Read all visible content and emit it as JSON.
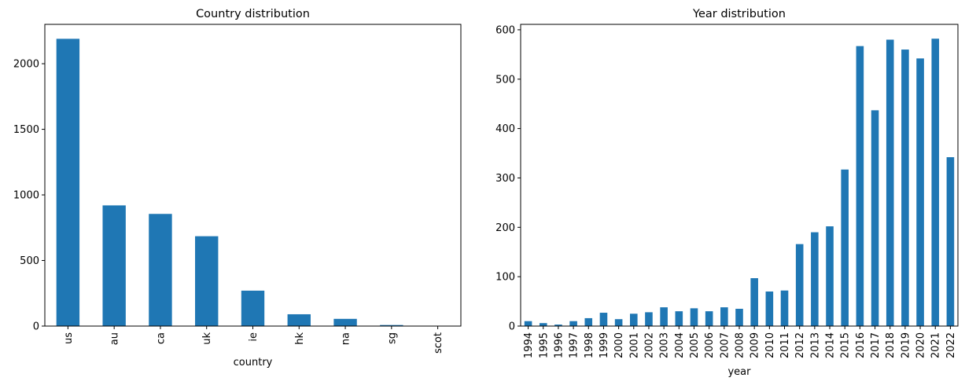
{
  "chart_data": [
    {
      "type": "bar",
      "title": "Country distribution",
      "xlabel": "country",
      "ylabel": "",
      "categories": [
        "us",
        "au",
        "ca",
        "uk",
        "ie",
        "hk",
        "na",
        "sg",
        "scot"
      ],
      "values": [
        2190,
        920,
        855,
        685,
        270,
        90,
        55,
        8,
        2
      ],
      "ylim": [
        0,
        2300
      ],
      "yticks": [
        0,
        500,
        1000,
        1500,
        2000
      ],
      "bar_color": "#1f77b4",
      "grid": false,
      "legend": "none"
    },
    {
      "type": "bar",
      "title": "Year distribution",
      "xlabel": "year",
      "ylabel": "",
      "categories": [
        "1994",
        "1995",
        "1996",
        "1997",
        "1998",
        "1999",
        "2000",
        "2001",
        "2002",
        "2003",
        "2004",
        "2005",
        "2006",
        "2007",
        "2008",
        "2009",
        "2010",
        "2011",
        "2012",
        "2013",
        "2014",
        "2015",
        "2016",
        "2017",
        "2018",
        "2019",
        "2020",
        "2021",
        "2022"
      ],
      "values": [
        10,
        6,
        3,
        10,
        16,
        27,
        14,
        25,
        28,
        38,
        30,
        36,
        30,
        38,
        35,
        97,
        70,
        72,
        166,
        190,
        202,
        317,
        567,
        437,
        580,
        560,
        542,
        582,
        342
      ],
      "ylim": [
        0,
        611
      ],
      "yticks": [
        0,
        100,
        200,
        300,
        400,
        500,
        600
      ],
      "bar_color": "#1f77b4",
      "grid": false,
      "legend": "none"
    }
  ]
}
